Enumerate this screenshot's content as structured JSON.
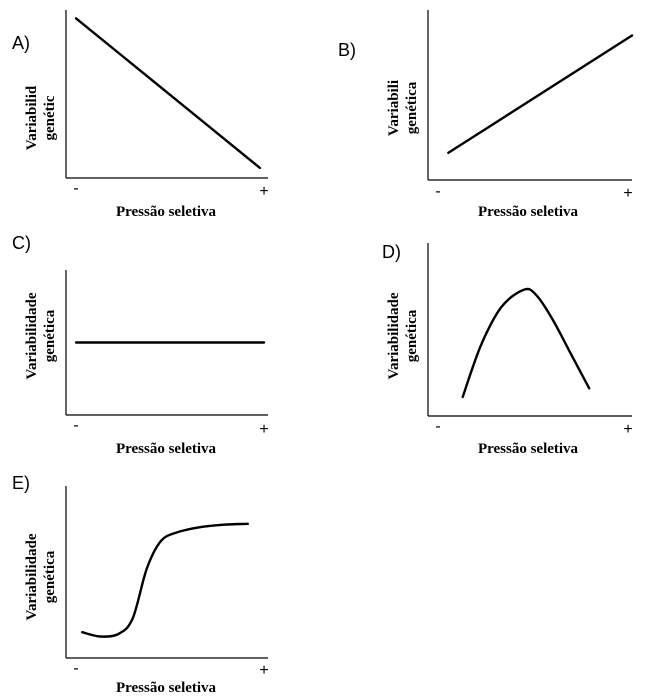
{
  "chart_data": [
    {
      "type": "line",
      "panel_label": "A)",
      "xlabel": "Pressão seletiva",
      "ylabel_line1": "Variabilid",
      "ylabel_line2": "genétic",
      "x_min_label": "-",
      "x_max_label": "+",
      "xlim": [
        0,
        10
      ],
      "ylim": [
        0,
        10
      ],
      "series": [
        {
          "x": [
            0.5,
            9.6
          ],
          "y": [
            9.5,
            0.6
          ]
        }
      ]
    },
    {
      "type": "line",
      "panel_label": "B)",
      "xlabel": "Pressão seletiva",
      "ylabel_line1": "Variabili",
      "ylabel_line2": "genética",
      "x_min_label": "-",
      "x_max_label": "+",
      "xlim": [
        0,
        10
      ],
      "ylim": [
        0,
        10
      ],
      "series": [
        {
          "x": [
            1.0,
            10.0
          ],
          "y": [
            1.6,
            8.5
          ]
        }
      ]
    },
    {
      "type": "line",
      "panel_label": "C)",
      "xlabel": "Pressão seletiva",
      "ylabel_line1": "Variabilidade",
      "ylabel_line2": "genética",
      "x_min_label": "-",
      "x_max_label": "+",
      "xlim": [
        0,
        10
      ],
      "ylim": [
        0,
        10
      ],
      "series": [
        {
          "x": [
            0.5,
            9.8
          ],
          "y": [
            5.0,
            5.0
          ]
        }
      ]
    },
    {
      "type": "line",
      "panel_label": "D)",
      "xlabel": "Pressão seletiva",
      "ylabel_line1": "Variabilidade",
      "ylabel_line2": "genética",
      "x_min_label": "-",
      "x_max_label": "+",
      "xlim": [
        0,
        10
      ],
      "ylim": [
        0,
        10
      ],
      "series": [
        {
          "x": [
            1.7,
            2.6,
            3.6,
            4.7,
            5.3,
            6.1,
            7.0,
            7.9
          ],
          "y": [
            1.1,
            4.1,
            6.3,
            7.3,
            7.0,
            5.6,
            3.6,
            1.6
          ]
        }
      ]
    },
    {
      "type": "line",
      "panel_label": "E)",
      "xlabel": "Pressão seletiva",
      "ylabel_line1": "Variabilidade",
      "ylabel_line2": "genética",
      "x_min_label": "-",
      "x_max_label": "+",
      "xlim": [
        0,
        10
      ],
      "ylim": [
        0,
        10
      ],
      "series": [
        {
          "x": [
            0.8,
            1.7,
            2.6,
            3.3,
            4.0,
            4.7,
            5.5,
            6.6,
            7.8,
            9.0
          ],
          "y": [
            1.5,
            1.25,
            1.4,
            2.3,
            5.2,
            6.8,
            7.3,
            7.6,
            7.75,
            7.8
          ]
        }
      ]
    }
  ]
}
